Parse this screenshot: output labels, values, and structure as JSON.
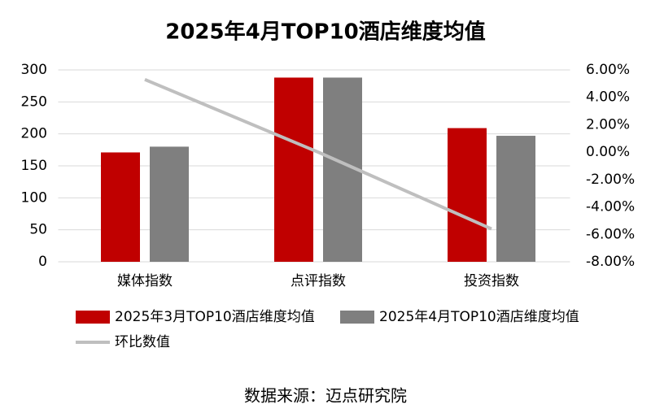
{
  "chart_data": {
    "type": "bar_line",
    "title": "2025年4月TOP10酒店维度均值",
    "categories": [
      "媒体指数",
      "点评指数",
      "投资指数"
    ],
    "series": [
      {
        "name": "2025年3月TOP10酒店维度均值",
        "color": "#c00000",
        "type": "bar",
        "values": [
          171,
          288,
          209
        ]
      },
      {
        "name": "2025年4月TOP10酒店维度均值",
        "color": "#7f7f7f",
        "type": "bar",
        "values": [
          180,
          288,
          197
        ]
      },
      {
        "name": "环比数值",
        "color": "#bfbfbf",
        "type": "line",
        "axis": "y2",
        "values": [
          5.3,
          0.0,
          -5.6
        ]
      }
    ],
    "ylim": [
      0,
      300
    ],
    "yticks": [
      0,
      50,
      100,
      150,
      200,
      250,
      300
    ],
    "y2lim": [
      -8,
      6
    ],
    "y2ticks": [
      {
        "value": -8,
        "label": "-8.00%"
      },
      {
        "value": -6,
        "label": "-6.00%"
      },
      {
        "value": -4,
        "label": "-4.00%"
      },
      {
        "value": -2,
        "label": "-2.00%"
      },
      {
        "value": 0,
        "label": "0.00%"
      },
      {
        "value": 2,
        "label": "2.00%"
      },
      {
        "value": 4,
        "label": "4.00%"
      },
      {
        "value": 6,
        "label": "6.00%"
      }
    ],
    "grid": true,
    "legend": "bottom",
    "source": "数据来源：迈点研究院"
  }
}
